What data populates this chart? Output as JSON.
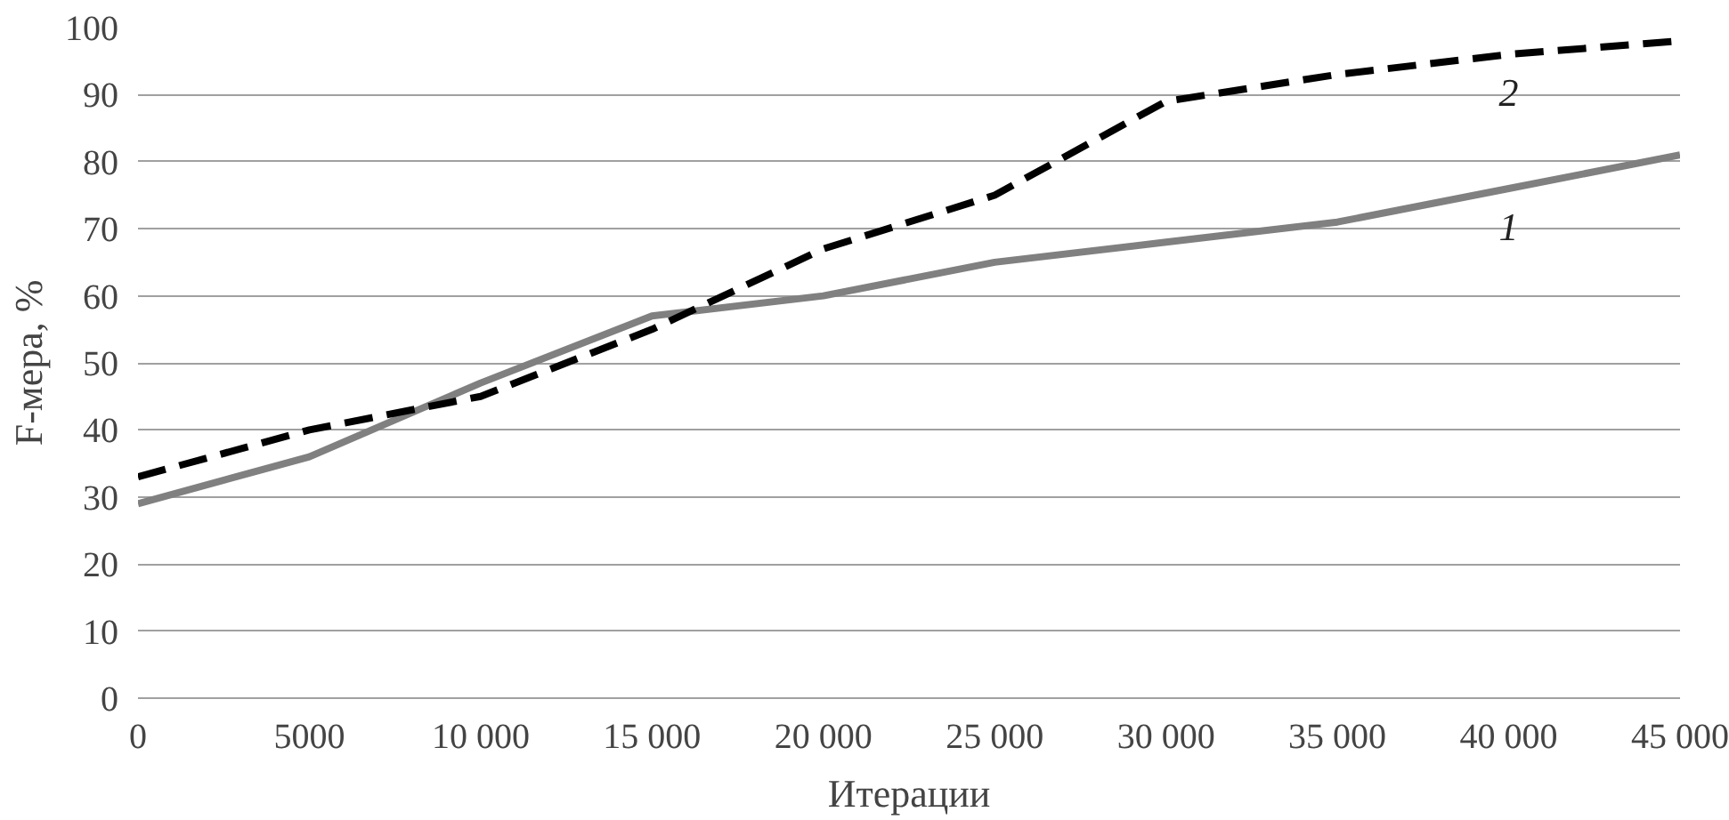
{
  "chart_data": {
    "type": "line",
    "xlabel": "Итерации",
    "ylabel": "F-мера, %",
    "x": [
      0,
      5000,
      10000,
      15000,
      20000,
      25000,
      30000,
      35000,
      40000,
      45000
    ],
    "series": [
      {
        "name": "1",
        "color": "#808080",
        "line_style": "solid",
        "values": [
          29,
          36,
          47,
          57,
          60,
          65,
          68,
          71,
          76,
          81
        ]
      },
      {
        "name": "2",
        "color": "#000000",
        "line_style": "dashed",
        "values": [
          33,
          40,
          45,
          55,
          67,
          75,
          89,
          93,
          96,
          98
        ]
      }
    ],
    "xlim": [
      0,
      45000
    ],
    "ylim": [
      0,
      100
    ],
    "xticks": [
      0,
      5000,
      {
        "value": 10000,
        "label": "10 000"
      },
      {
        "value": 15000,
        "label": "15 000"
      },
      {
        "value": 20000,
        "label": "20 000"
      },
      {
        "value": 25000,
        "label": "25 000"
      },
      {
        "value": 30000,
        "label": "30 000"
      },
      {
        "value": 35000,
        "label": "35 000"
      },
      {
        "value": 40000,
        "label": "40 000"
      },
      {
        "value": 45000,
        "label": "45 000"
      }
    ],
    "yticks": [
      0,
      10,
      20,
      30,
      40,
      50,
      60,
      70,
      80,
      90,
      100
    ],
    "grid": "y",
    "legend": false,
    "marker": "none"
  }
}
